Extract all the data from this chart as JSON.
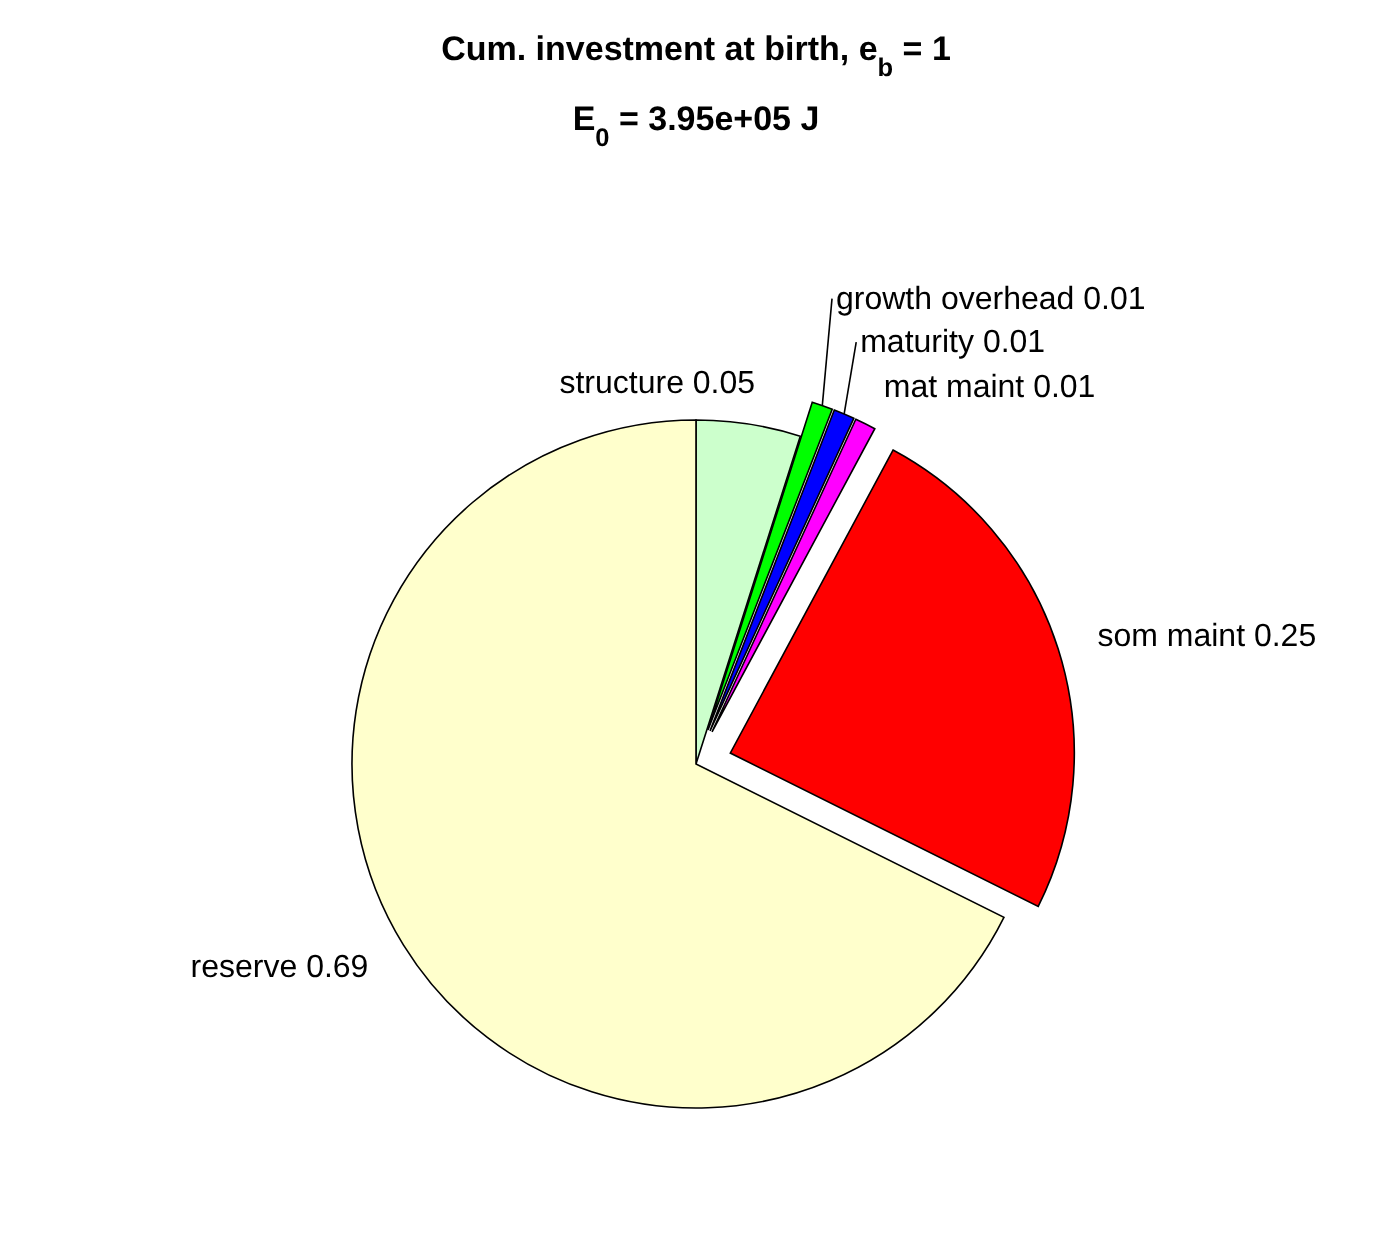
{
  "chart_data": {
    "type": "pie",
    "title": "Cum. investment at birth, e$_{b}$ = 1",
    "subtitle": "E$_{0}$ = 3.95e+05 J",
    "categories": [
      "structure 0.05",
      "growth overhead 0.01",
      "maturity 0.01",
      "mat maint 0.01",
      "som maint 0.25",
      "reserve 0.69"
    ],
    "values": [
      0.05,
      0.01,
      0.01,
      0.01,
      0.25,
      0.69
    ],
    "colors": [
      "#ccffcc",
      "#00ff00",
      "#0000ff",
      "#ff00ff",
      "#ff0000",
      "#ffffcc"
    ]
  }
}
